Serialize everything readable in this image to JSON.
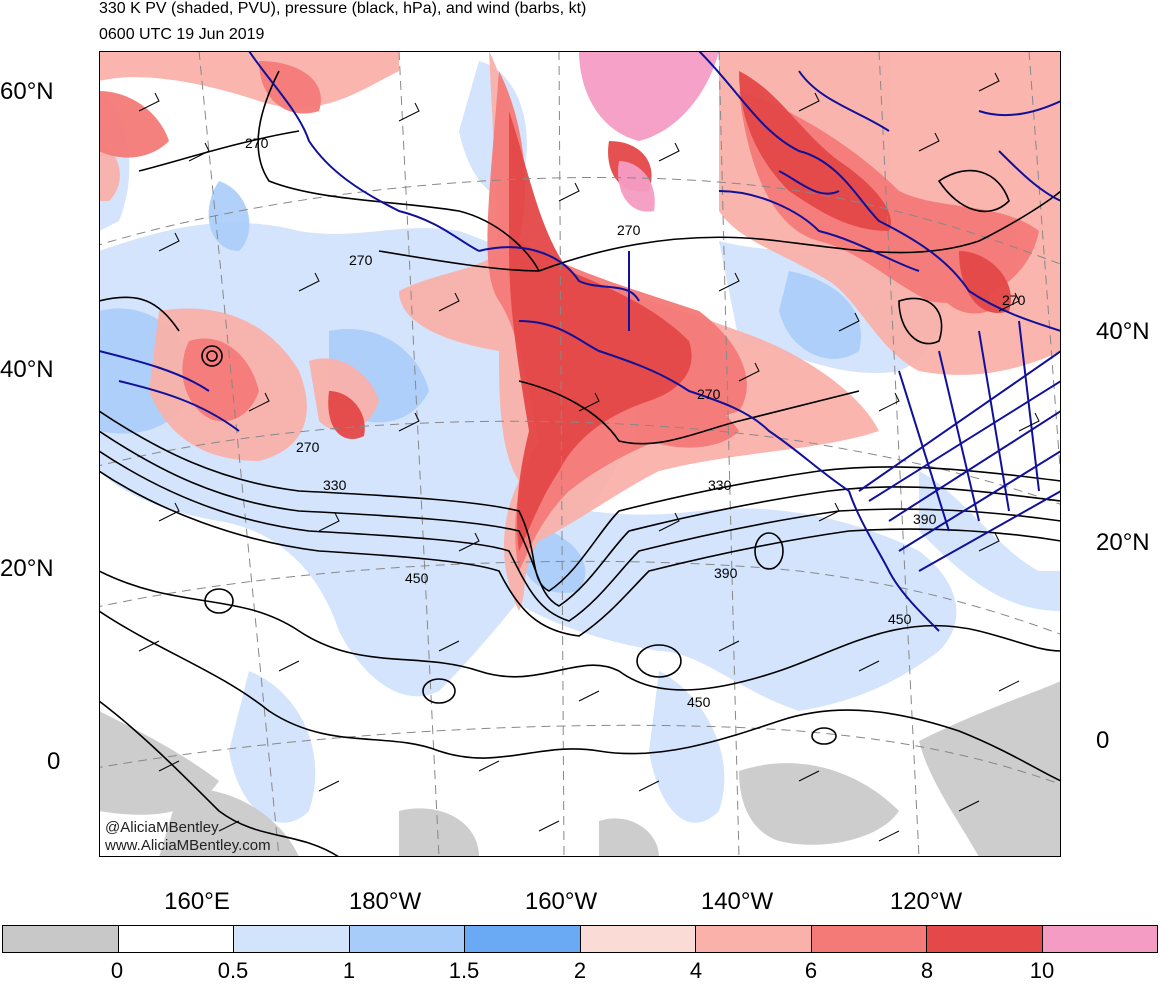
{
  "header": {
    "title": "330 K PV (shaded, PVU), pressure (black, hPa), and wind (barbs, kt)",
    "date": "0600 UTC 19 Jun 2019"
  },
  "axes": {
    "lat_left": [
      "60°N",
      "40°N",
      "20°N",
      "0"
    ],
    "lat_right": [
      "40°N",
      "20°N",
      "0"
    ],
    "lon_bottom": [
      "160°E",
      "180°W",
      "160°W",
      "140°W",
      "120°W"
    ]
  },
  "contour_labels": [
    "270",
    "270",
    "270",
    "270",
    "270",
    "270",
    "330",
    "330",
    "390",
    "390",
    "450",
    "450",
    "450"
  ],
  "credit": {
    "handle": "@AliciaMBentley",
    "site": "www.AliciaMBentley.com"
  },
  "colorbar": {
    "colors": [
      "#c8c8c8",
      "#ffffff",
      "#d2e3fc",
      "#a8ccfa",
      "#6aaaf4",
      "#fadbd6",
      "#f9b1aa",
      "#f47a78",
      "#e44848",
      "#f59cc4"
    ],
    "ticks": [
      "0",
      "0.5",
      "1",
      "1.5",
      "2",
      "4",
      "6",
      "8",
      "10"
    ]
  },
  "colors": {
    "coastline": "#10109a",
    "pressure_contour": "#000000",
    "graticule": "#888888",
    "ice_gray": "#c8c8c8"
  }
}
